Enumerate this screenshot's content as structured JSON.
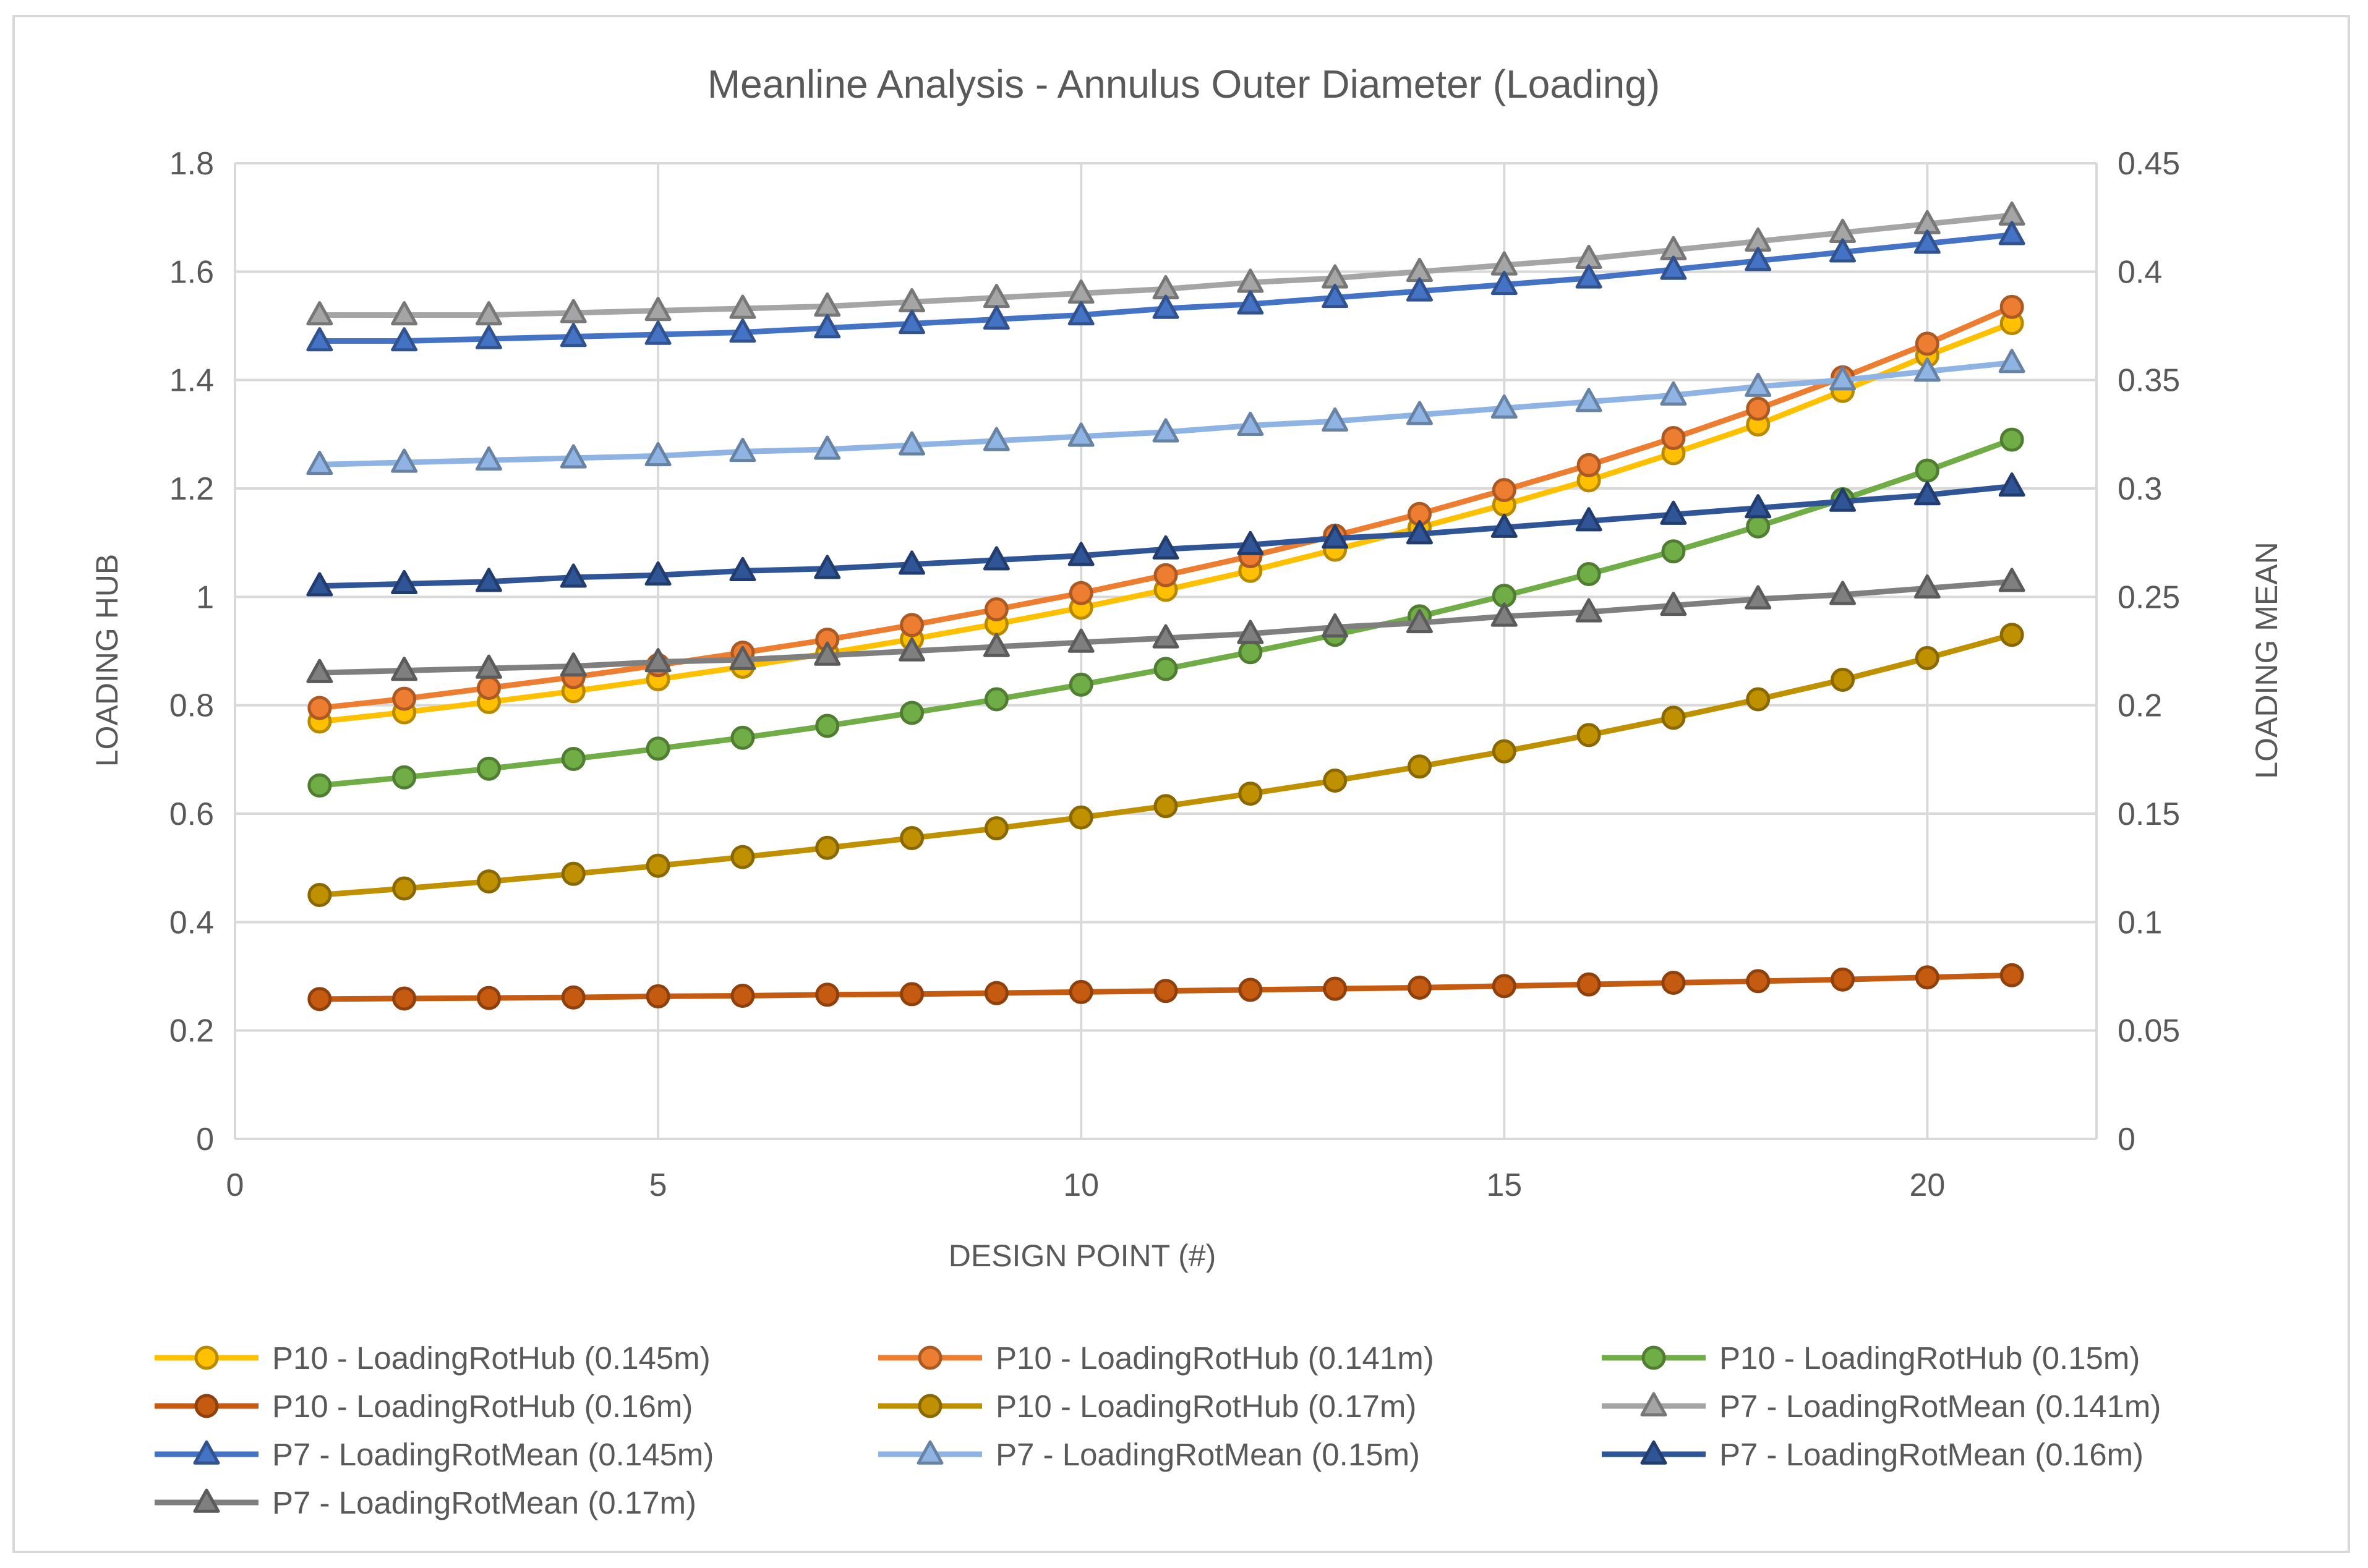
{
  "chart_data": {
    "type": "line",
    "title": "Meanline Analysis - Annulus Outer Diameter (Loading)",
    "xlabel": "DESIGN POINT (#)",
    "ylabel": "LOADING HUB",
    "y2label": "LOADING MEAN",
    "xlim": [
      0,
      22
    ],
    "xticks": [
      0,
      5,
      10,
      15,
      20
    ],
    "ylim": [
      0,
      1.8
    ],
    "yticks": [
      "0",
      "0.2",
      "0.4",
      "0.6",
      "0.8",
      "1",
      "1.2",
      "1.4",
      "1.6",
      "1.8"
    ],
    "y2lim": [
      0,
      0.45
    ],
    "y2ticks": [
      "0",
      "0.05",
      "0.1",
      "0.15",
      "0.2",
      "0.25",
      "0.3",
      "0.35",
      "0.4",
      "0.45"
    ],
    "grid": true,
    "legend_position": "bottom",
    "x": [
      1,
      2,
      3,
      4,
      5,
      6,
      7,
      8,
      9,
      10,
      11,
      12,
      13,
      14,
      15,
      16,
      17,
      18,
      19,
      20,
      21
    ],
    "series": [
      {
        "name": "P10 - LoadingRotHub (0.145m)",
        "axis": "left",
        "marker": "circle",
        "color": "#FFC000",
        "values": [
          0.77,
          0.787,
          0.806,
          0.826,
          0.848,
          0.871,
          0.896,
          0.922,
          0.95,
          0.98,
          1.013,
          1.048,
          1.087,
          1.128,
          1.17,
          1.215,
          1.265,
          1.318,
          1.38,
          1.445,
          1.505
        ]
      },
      {
        "name": "P10 - LoadingRotHub (0.141m)",
        "axis": "left",
        "marker": "circle",
        "color": "#ED7D31",
        "values": [
          0.795,
          0.812,
          0.832,
          0.852,
          0.874,
          0.897,
          0.921,
          0.948,
          0.977,
          1.007,
          1.04,
          1.075,
          1.113,
          1.153,
          1.197,
          1.243,
          1.293,
          1.347,
          1.405,
          1.467,
          1.535
        ]
      },
      {
        "name": "P10 - LoadingRotHub (0.15m)",
        "axis": "left",
        "marker": "circle",
        "color": "#70AD47",
        "values": [
          0.652,
          0.667,
          0.683,
          0.701,
          0.72,
          0.74,
          0.762,
          0.786,
          0.811,
          0.838,
          0.867,
          0.898,
          0.93,
          0.964,
          1.002,
          1.042,
          1.084,
          1.13,
          1.18,
          1.233,
          1.29
        ]
      },
      {
        "name": "P10 - LoadingRotHub (0.16m)",
        "axis": "left",
        "marker": "circle",
        "color": "#C55A11",
        "values": [
          0.258,
          0.259,
          0.26,
          0.261,
          0.263,
          0.264,
          0.266,
          0.267,
          0.269,
          0.271,
          0.273,
          0.275,
          0.277,
          0.279,
          0.282,
          0.285,
          0.288,
          0.291,
          0.294,
          0.298,
          0.302
        ]
      },
      {
        "name": "P10 - LoadingRotHub (0.17m)",
        "axis": "left",
        "marker": "circle",
        "color": "#BF9000",
        "values": [
          0.45,
          0.462,
          0.475,
          0.489,
          0.504,
          0.52,
          0.537,
          0.555,
          0.573,
          0.593,
          0.614,
          0.637,
          0.661,
          0.687,
          0.715,
          0.745,
          0.777,
          0.811,
          0.847,
          0.887,
          0.93
        ]
      },
      {
        "name": "P7 - LoadingRotMean (0.141m)",
        "axis": "right",
        "marker": "triangle",
        "color": "#A5A5A5",
        "values": [
          0.38,
          0.38,
          0.38,
          0.381,
          0.382,
          0.383,
          0.384,
          0.386,
          0.388,
          0.39,
          0.392,
          0.395,
          0.397,
          0.4,
          0.403,
          0.406,
          0.41,
          0.414,
          0.418,
          0.422,
          0.426
        ]
      },
      {
        "name": "P7 - LoadingRotMean (0.145m)",
        "axis": "right",
        "marker": "triangle",
        "color": "#4472C4",
        "values": [
          0.368,
          0.368,
          0.369,
          0.37,
          0.371,
          0.372,
          0.374,
          0.376,
          0.378,
          0.38,
          0.383,
          0.385,
          0.388,
          0.391,
          0.394,
          0.397,
          0.401,
          0.405,
          0.409,
          0.413,
          0.417
        ]
      },
      {
        "name": "P7 - LoadingRotMean (0.15m)",
        "axis": "right",
        "marker": "triangle",
        "color": "#8FB4E3",
        "values": [
          0.311,
          0.312,
          0.313,
          0.314,
          0.315,
          0.317,
          0.318,
          0.32,
          0.322,
          0.324,
          0.326,
          0.329,
          0.331,
          0.334,
          0.337,
          0.34,
          0.343,
          0.347,
          0.35,
          0.354,
          0.358
        ]
      },
      {
        "name": "P7 - LoadingRotMean (0.16m)",
        "axis": "right",
        "marker": "triangle",
        "color": "#2F5597",
        "values": [
          0.255,
          0.256,
          0.257,
          0.259,
          0.26,
          0.262,
          0.263,
          0.265,
          0.267,
          0.269,
          0.272,
          0.274,
          0.277,
          0.279,
          0.282,
          0.285,
          0.288,
          0.291,
          0.294,
          0.297,
          0.301
        ]
      },
      {
        "name": "P7 - LoadingRotMean (0.17m)",
        "axis": "right",
        "marker": "triangle",
        "color": "#7F7F7F",
        "values": [
          0.215,
          0.216,
          0.217,
          0.218,
          0.22,
          0.221,
          0.223,
          0.225,
          0.227,
          0.229,
          0.231,
          0.233,
          0.236,
          0.238,
          0.241,
          0.243,
          0.246,
          0.249,
          0.251,
          0.254,
          0.257
        ]
      }
    ]
  }
}
